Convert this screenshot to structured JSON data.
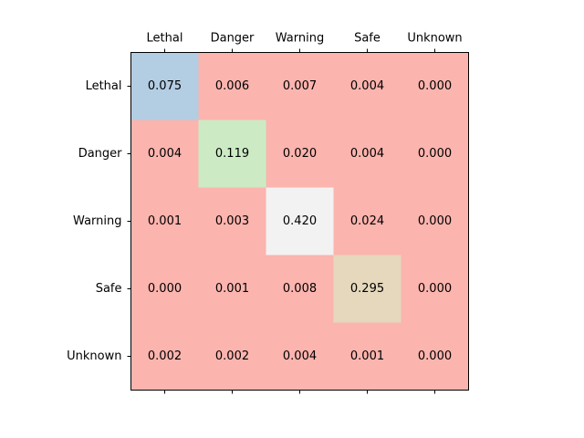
{
  "chart_data": {
    "type": "heatmap",
    "title": "",
    "xlabel": "",
    "ylabel": "",
    "x_categories": [
      "Lethal",
      "Danger",
      "Warning",
      "Safe",
      "Unknown"
    ],
    "y_categories": [
      "Lethal",
      "Danger",
      "Warning",
      "Safe",
      "Unknown"
    ],
    "x_axis_position": "top",
    "values": [
      [
        0.075,
        0.006,
        0.007,
        0.004,
        0.0
      ],
      [
        0.004,
        0.119,
        0.02,
        0.004,
        0.0
      ],
      [
        0.001,
        0.003,
        0.42,
        0.024,
        0.0
      ],
      [
        0.0,
        0.001,
        0.008,
        0.295,
        0.0
      ],
      [
        0.002,
        0.002,
        0.004,
        0.001,
        0.0
      ]
    ],
    "labels": [
      [
        "0.075",
        "0.006",
        "0.007",
        "0.004",
        "0.000"
      ],
      [
        "0.004",
        "0.119",
        "0.020",
        "0.004",
        "0.000"
      ],
      [
        "0.001",
        "0.003",
        "0.420",
        "0.024",
        "0.000"
      ],
      [
        "0.000",
        "0.001",
        "0.008",
        "0.295",
        "0.000"
      ],
      [
        "0.002",
        "0.002",
        "0.004",
        "0.001",
        "0.000"
      ]
    ],
    "colors": {
      "diagonal": [
        "#b3cde3",
        "#ccebc5",
        "#f2f2f2",
        "#e5d8bd",
        "#fbb4ae"
      ],
      "off_diagonal": "#fbb4ae"
    },
    "grid": false
  }
}
